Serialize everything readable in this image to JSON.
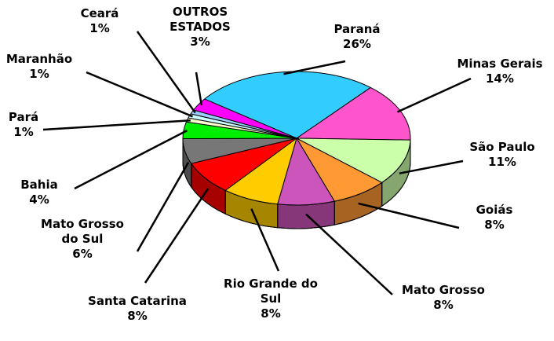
{
  "chart_data": {
    "type": "pie3d",
    "categories": [
      "Paraná",
      "Minas Gerais",
      "São Paulo",
      "Goiás",
      "Mato Grosso",
      "Rio Grande do Sul",
      "Santa Catarina",
      "Mato Grosso do Sul",
      "Bahia",
      "Pará",
      "Maranhão",
      "Ceará",
      "OUTROS ESTADOS"
    ],
    "values": [
      26,
      14,
      11,
      8,
      8,
      8,
      8,
      6,
      4,
      1,
      1,
      1,
      3
    ],
    "value_labels": [
      "26%",
      "14%",
      "11%",
      "8%",
      "8%",
      "8%",
      "8%",
      "6%",
      "4%",
      "1%",
      "1%",
      "1%",
      "3%"
    ],
    "colors": [
      "#33ccff",
      "#ff55cc",
      "#ccffaa",
      "#ff9933",
      "#cc55bb",
      "#ffcc00",
      "#ff0000",
      "#777777",
      "#00ee00",
      "#ffffcc",
      "#ccffff",
      "#99ccff",
      "#ff00ff"
    ]
  }
}
